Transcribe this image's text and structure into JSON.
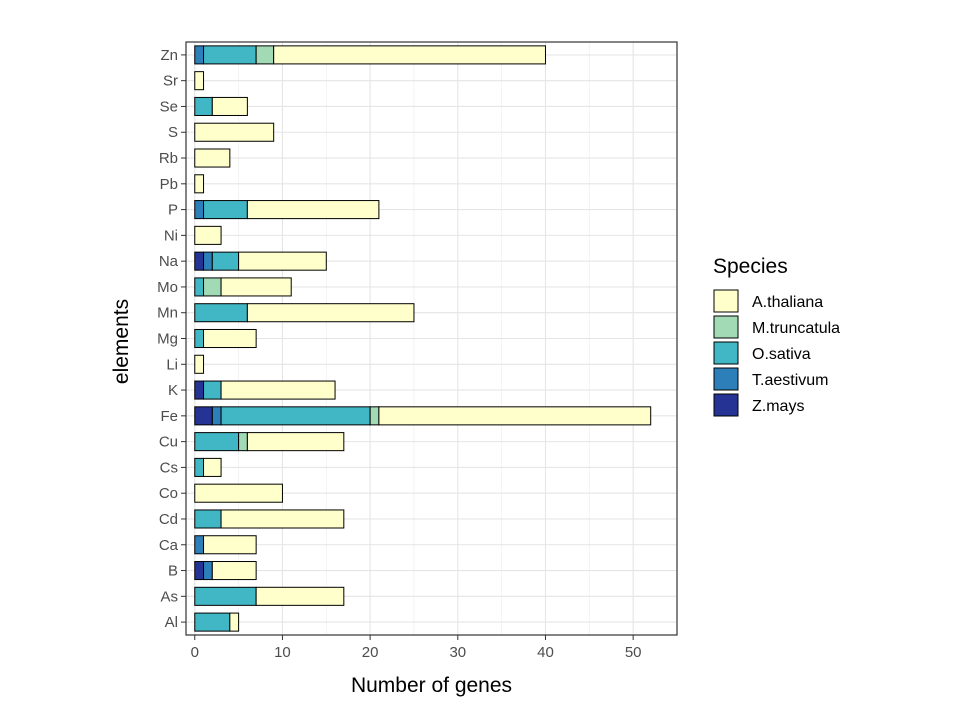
{
  "chart_data": {
    "type": "bar",
    "orientation": "horizontal",
    "stacked": true,
    "title": "",
    "xlabel": "Number of genes",
    "ylabel": "elements",
    "xlim": [
      -1,
      55
    ],
    "xticks": [
      0,
      10,
      20,
      30,
      40,
      50
    ],
    "grid": true,
    "legend_title": "Species",
    "legend_position": "right",
    "categories": [
      "Al",
      "As",
      "B",
      "Ca",
      "Cd",
      "Co",
      "Cs",
      "Cu",
      "Fe",
      "K",
      "Li",
      "Mg",
      "Mn",
      "Mo",
      "Na",
      "Ni",
      "P",
      "Pb",
      "Rb",
      "S",
      "Se",
      "Sr",
      "Zn"
    ],
    "stack_order": [
      "Z.mays",
      "T.aestivum",
      "O.sativa",
      "M.truncatula",
      "A.thaliana"
    ],
    "series": [
      {
        "name": "A.thaliana",
        "color": "#ffffcc",
        "values": [
          1,
          10,
          5,
          6,
          14,
          10,
          2,
          11,
          31,
          13,
          1,
          6,
          19,
          8,
          10,
          3,
          15,
          1,
          4,
          9,
          4,
          1,
          31
        ]
      },
      {
        "name": "M.truncatula",
        "color": "#a1dab4",
        "values": [
          0,
          0,
          0,
          0,
          0,
          0,
          0,
          1,
          1,
          0,
          0,
          0,
          0,
          2,
          0,
          0,
          0,
          0,
          0,
          0,
          0,
          0,
          2
        ]
      },
      {
        "name": "O.sativa",
        "color": "#41b6c4",
        "values": [
          4,
          7,
          0,
          0,
          3,
          0,
          1,
          5,
          17,
          2,
          0,
          1,
          6,
          1,
          3,
          0,
          5,
          0,
          0,
          0,
          2,
          0,
          6
        ]
      },
      {
        "name": "T.aestivum",
        "color": "#2c7fb8",
        "values": [
          0,
          0,
          1,
          1,
          0,
          0,
          0,
          0,
          1,
          0,
          0,
          0,
          0,
          0,
          1,
          0,
          1,
          0,
          0,
          0,
          0,
          0,
          1
        ]
      },
      {
        "name": "Z.mays",
        "color": "#253494",
        "values": [
          0,
          0,
          1,
          0,
          0,
          0,
          0,
          0,
          2,
          1,
          0,
          0,
          0,
          0,
          1,
          0,
          0,
          0,
          0,
          0,
          0,
          0,
          0
        ]
      }
    ]
  }
}
